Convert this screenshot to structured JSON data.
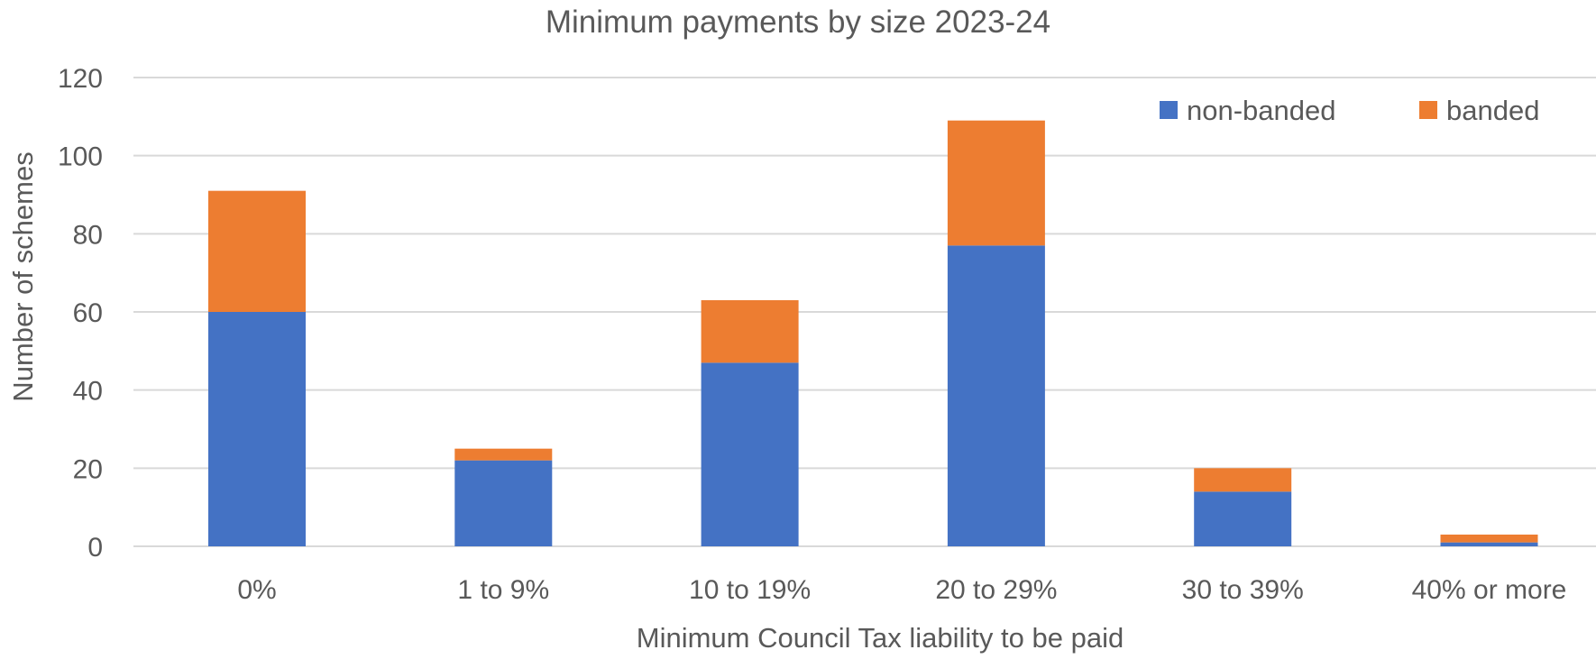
{
  "chart_data": {
    "type": "bar",
    "stacked": true,
    "title": "Minimum payments by size 2023-24",
    "xlabel": "Minimum Council Tax liability to be paid",
    "ylabel": "Number of schemes",
    "categories": [
      "0%",
      "1 to 9%",
      "10 to 19%",
      "20 to 29%",
      "30 to 39%",
      "40% or more"
    ],
    "series": [
      {
        "name": "non-banded",
        "color": "#4472C4",
        "values": [
          60,
          22,
          47,
          77,
          14,
          1
        ]
      },
      {
        "name": "banded",
        "color": "#ED7D31",
        "values": [
          31,
          3,
          16,
          32,
          6,
          2
        ]
      }
    ],
    "ylim": [
      0,
      120
    ],
    "yticks": [
      0,
      20,
      40,
      60,
      80,
      100,
      120
    ],
    "grid": true,
    "legend_position": "top-right",
    "colors": {
      "gridline": "#D9D9D9",
      "text": "#595959"
    }
  }
}
